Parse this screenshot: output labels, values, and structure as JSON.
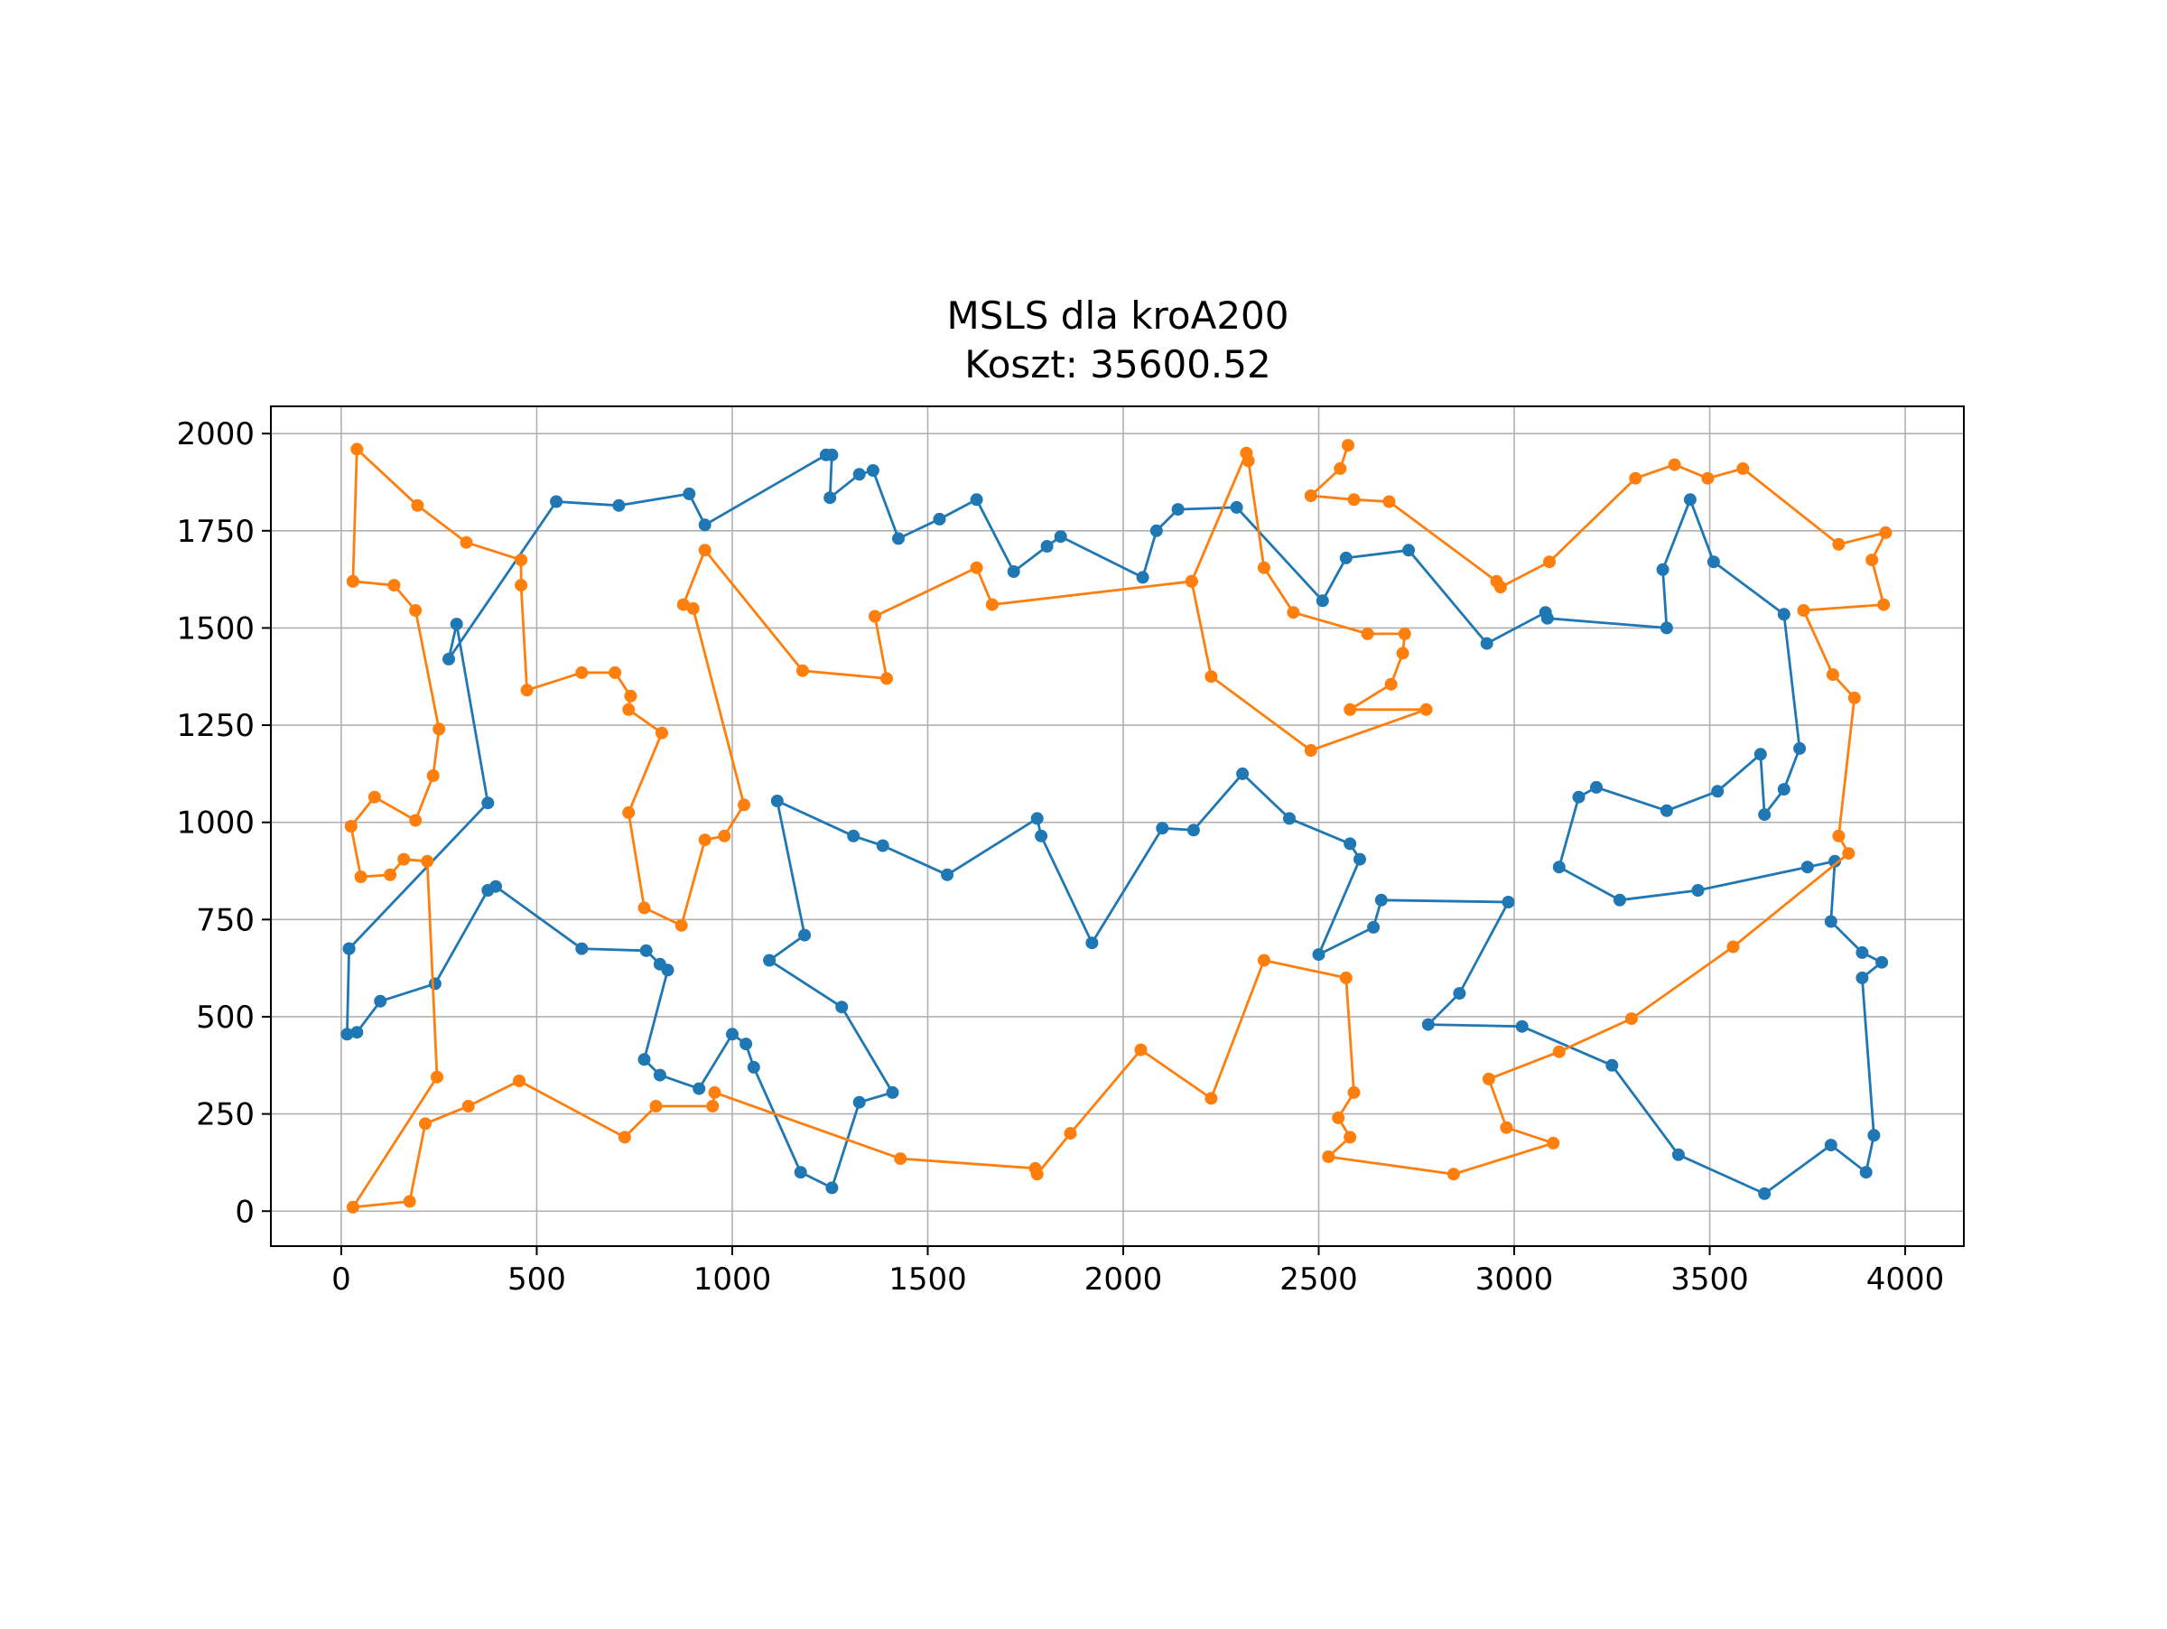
{
  "chart_data": {
    "type": "line",
    "title": "MSLS dla kroA200",
    "subtitle": "Koszt: 35600.52",
    "xlabel": "",
    "ylabel": "",
    "xlim": [
      -180,
      4150
    ],
    "ylim": [
      -90,
      2070
    ],
    "grid": true,
    "x_ticks": [
      0,
      500,
      1000,
      1500,
      2000,
      2500,
      3000,
      3500,
      4000
    ],
    "y_ticks": [
      0,
      250,
      500,
      750,
      1000,
      1250,
      1500,
      1750,
      2000
    ],
    "x_tick_labels": [
      "0",
      "500",
      "1000",
      "1500",
      "2000",
      "2500",
      "3000",
      "3500",
      "4000"
    ],
    "y_tick_labels": [
      "0",
      "250",
      "500",
      "750",
      "1000",
      "1250",
      "1500",
      "1750",
      "2000"
    ],
    "series": [
      {
        "color": "#1f77b4",
        "points": [
          [
            20,
            675
          ],
          [
            375,
            1050
          ],
          [
            295,
            1510
          ],
          [
            275,
            1420
          ],
          [
            550,
            1825
          ],
          [
            710,
            1815
          ],
          [
            890,
            1845
          ],
          [
            930,
            1765
          ],
          [
            1240,
            1945
          ],
          [
            1255,
            1945
          ],
          [
            1250,
            1835
          ],
          [
            1325,
            1895
          ],
          [
            1360,
            1905
          ],
          [
            1425,
            1730
          ],
          [
            1530,
            1780
          ],
          [
            1625,
            1830
          ],
          [
            1720,
            1645
          ],
          [
            1805,
            1710
          ],
          [
            1840,
            1735
          ],
          [
            2050,
            1630
          ],
          [
            2085,
            1750
          ],
          [
            2140,
            1805
          ],
          [
            2290,
            1810
          ],
          [
            2510,
            1570
          ],
          [
            2570,
            1680
          ],
          [
            2730,
            1700
          ],
          [
            2930,
            1460
          ],
          [
            3080,
            1540
          ],
          [
            3085,
            1525
          ],
          [
            3390,
            1500
          ],
          [
            3380,
            1650
          ],
          [
            3450,
            1830
          ],
          [
            3510,
            1670
          ],
          [
            3690,
            1535
          ],
          [
            3730,
            1190
          ],
          [
            3690,
            1085
          ],
          [
            3640,
            1020
          ],
          [
            3630,
            1175
          ],
          [
            3520,
            1080
          ],
          [
            3390,
            1030
          ],
          [
            3210,
            1090
          ],
          [
            3165,
            1065
          ],
          [
            3115,
            885
          ],
          [
            3270,
            800
          ],
          [
            3470,
            825
          ],
          [
            3750,
            885
          ],
          [
            3820,
            900
          ],
          [
            3810,
            745
          ],
          [
            3890,
            665
          ],
          [
            3940,
            640
          ],
          [
            3890,
            600
          ],
          [
            3920,
            195
          ],
          [
            3900,
            100
          ],
          [
            3810,
            170
          ],
          [
            3640,
            45
          ],
          [
            3420,
            145
          ],
          [
            3250,
            375
          ],
          [
            3020,
            475
          ],
          [
            2780,
            480
          ],
          [
            2860,
            560
          ],
          [
            2985,
            795
          ],
          [
            2660,
            800
          ],
          [
            2640,
            730
          ],
          [
            2500,
            660
          ],
          [
            2605,
            905
          ],
          [
            2580,
            945
          ],
          [
            2425,
            1010
          ],
          [
            2305,
            1125
          ],
          [
            2180,
            980
          ],
          [
            2100,
            985
          ],
          [
            1920,
            690
          ],
          [
            1790,
            965
          ],
          [
            1780,
            1010
          ],
          [
            1550,
            865
          ],
          [
            1385,
            940
          ],
          [
            1310,
            965
          ],
          [
            1115,
            1055
          ],
          [
            1185,
            710
          ],
          [
            1095,
            645
          ],
          [
            1280,
            525
          ],
          [
            1410,
            305
          ],
          [
            1325,
            280
          ],
          [
            1255,
            60
          ],
          [
            1175,
            100
          ],
          [
            1055,
            370
          ],
          [
            1035,
            430
          ],
          [
            1000,
            455
          ],
          [
            915,
            315
          ],
          [
            815,
            350
          ],
          [
            775,
            390
          ],
          [
            835,
            620
          ],
          [
            815,
            635
          ],
          [
            780,
            670
          ],
          [
            615,
            675
          ],
          [
            395,
            835
          ],
          [
            375,
            825
          ],
          [
            240,
            585
          ],
          [
            100,
            540
          ],
          [
            40,
            460
          ],
          [
            15,
            455
          ],
          [
            20,
            675
          ]
        ]
      },
      {
        "color": "#ff7f0e",
        "points": [
          [
            30,
            1620
          ],
          [
            40,
            1960
          ],
          [
            195,
            1815
          ],
          [
            320,
            1720
          ],
          [
            460,
            1675
          ],
          [
            460,
            1610
          ],
          [
            475,
            1340
          ],
          [
            615,
            1385
          ],
          [
            700,
            1385
          ],
          [
            740,
            1325
          ],
          [
            735,
            1290
          ],
          [
            820,
            1230
          ],
          [
            735,
            1025
          ],
          [
            775,
            780
          ],
          [
            870,
            735
          ],
          [
            930,
            955
          ],
          [
            980,
            965
          ],
          [
            1030,
            1045
          ],
          [
            900,
            1550
          ],
          [
            875,
            1560
          ],
          [
            930,
            1700
          ],
          [
            1180,
            1390
          ],
          [
            1395,
            1370
          ],
          [
            1365,
            1530
          ],
          [
            1625,
            1655
          ],
          [
            1665,
            1560
          ],
          [
            2175,
            1620
          ],
          [
            2315,
            1950
          ],
          [
            2320,
            1930
          ],
          [
            2360,
            1655
          ],
          [
            2435,
            1540
          ],
          [
            2625,
            1485
          ],
          [
            2720,
            1485
          ],
          [
            2715,
            1435
          ],
          [
            2685,
            1355
          ],
          [
            2580,
            1290
          ],
          [
            2775,
            1290
          ],
          [
            2480,
            1185
          ],
          [
            2225,
            1375
          ],
          [
            2175,
            1620
          ],
          [
            2175,
            1620
          ]
        ]
      },
      {
        "color": "#ff7f0e",
        "points": [
          [
            2575,
            1970
          ],
          [
            2555,
            1910
          ],
          [
            2480,
            1840
          ],
          [
            2590,
            1830
          ],
          [
            2680,
            1825
          ],
          [
            2955,
            1620
          ],
          [
            2965,
            1605
          ],
          [
            3090,
            1670
          ],
          [
            3310,
            1885
          ],
          [
            3410,
            1920
          ],
          [
            3495,
            1885
          ],
          [
            3585,
            1910
          ],
          [
            3830,
            1715
          ],
          [
            3950,
            1745
          ],
          [
            3915,
            1675
          ],
          [
            3945,
            1560
          ],
          [
            3740,
            1545
          ],
          [
            3815,
            1380
          ],
          [
            3870,
            1320
          ],
          [
            3830,
            965
          ],
          [
            3855,
            920
          ],
          [
            3560,
            680
          ],
          [
            3300,
            495
          ],
          [
            3115,
            410
          ],
          [
            2935,
            340
          ],
          [
            2980,
            215
          ],
          [
            3100,
            175
          ],
          [
            2845,
            95
          ],
          [
            2525,
            140
          ],
          [
            2580,
            190
          ],
          [
            2550,
            240
          ],
          [
            2590,
            305
          ],
          [
            2570,
            600
          ],
          [
            2360,
            645
          ],
          [
            2225,
            290
          ],
          [
            2045,
            415
          ],
          [
            1865,
            200
          ],
          [
            1780,
            95
          ],
          [
            1775,
            110
          ],
          [
            1430,
            135
          ],
          [
            955,
            305
          ],
          [
            950,
            270
          ],
          [
            805,
            270
          ],
          [
            725,
            190
          ],
          [
            455,
            335
          ],
          [
            325,
            270
          ],
          [
            215,
            225
          ],
          [
            175,
            25
          ],
          [
            30,
            10
          ],
          [
            245,
            345
          ],
          [
            220,
            900
          ],
          [
            160,
            905
          ],
          [
            125,
            865
          ],
          [
            50,
            860
          ],
          [
            25,
            990
          ],
          [
            85,
            1065
          ],
          [
            190,
            1005
          ],
          [
            235,
            1120
          ],
          [
            250,
            1240
          ],
          [
            190,
            1545
          ],
          [
            135,
            1610
          ],
          [
            30,
            1620
          ]
        ]
      }
    ]
  }
}
